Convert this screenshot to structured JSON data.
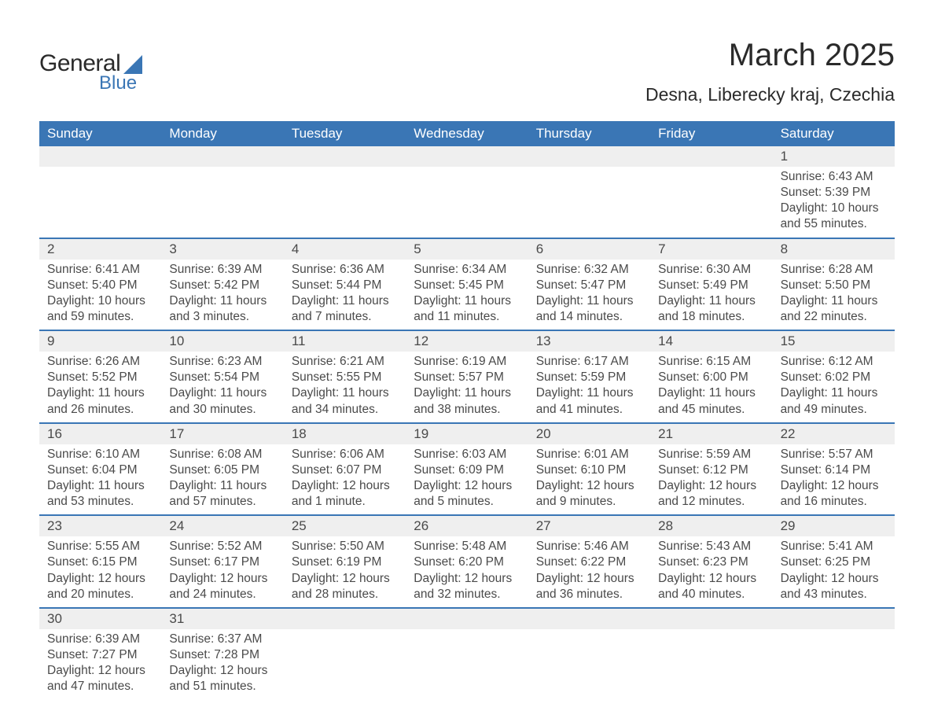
{
  "logo": {
    "general": "General",
    "blue": "Blue"
  },
  "title": "March 2025",
  "location": "Desna, Liberecky kraj, Czechia",
  "dayNames": [
    "Sunday",
    "Monday",
    "Tuesday",
    "Wednesday",
    "Thursday",
    "Friday",
    "Saturday"
  ],
  "colors": {
    "header_bg": "#3a76b5",
    "header_text": "#ffffff",
    "daynum_bg": "#efefef",
    "row_divider": "#3a76b5",
    "text": "#4a4a4a",
    "background": "#ffffff"
  },
  "typography": {
    "title_fontsize": 40,
    "location_fontsize": 23,
    "dayname_fontsize": 17,
    "daynum_fontsize": 17,
    "body_fontsize": 15.5
  },
  "layout": {
    "columns": 7,
    "rows": 6,
    "first_weekday": "Sunday"
  },
  "weeks": [
    [
      {
        "n": ""
      },
      {
        "n": ""
      },
      {
        "n": ""
      },
      {
        "n": ""
      },
      {
        "n": ""
      },
      {
        "n": ""
      },
      {
        "n": "1",
        "sr": "Sunrise: 6:43 AM",
        "ss": "Sunset: 5:39 PM",
        "d1": "Daylight: 10 hours",
        "d2": "and 55 minutes."
      }
    ],
    [
      {
        "n": "2",
        "sr": "Sunrise: 6:41 AM",
        "ss": "Sunset: 5:40 PM",
        "d1": "Daylight: 10 hours",
        "d2": "and 59 minutes."
      },
      {
        "n": "3",
        "sr": "Sunrise: 6:39 AM",
        "ss": "Sunset: 5:42 PM",
        "d1": "Daylight: 11 hours",
        "d2": "and 3 minutes."
      },
      {
        "n": "4",
        "sr": "Sunrise: 6:36 AM",
        "ss": "Sunset: 5:44 PM",
        "d1": "Daylight: 11 hours",
        "d2": "and 7 minutes."
      },
      {
        "n": "5",
        "sr": "Sunrise: 6:34 AM",
        "ss": "Sunset: 5:45 PM",
        "d1": "Daylight: 11 hours",
        "d2": "and 11 minutes."
      },
      {
        "n": "6",
        "sr": "Sunrise: 6:32 AM",
        "ss": "Sunset: 5:47 PM",
        "d1": "Daylight: 11 hours",
        "d2": "and 14 minutes."
      },
      {
        "n": "7",
        "sr": "Sunrise: 6:30 AM",
        "ss": "Sunset: 5:49 PM",
        "d1": "Daylight: 11 hours",
        "d2": "and 18 minutes."
      },
      {
        "n": "8",
        "sr": "Sunrise: 6:28 AM",
        "ss": "Sunset: 5:50 PM",
        "d1": "Daylight: 11 hours",
        "d2": "and 22 minutes."
      }
    ],
    [
      {
        "n": "9",
        "sr": "Sunrise: 6:26 AM",
        "ss": "Sunset: 5:52 PM",
        "d1": "Daylight: 11 hours",
        "d2": "and 26 minutes."
      },
      {
        "n": "10",
        "sr": "Sunrise: 6:23 AM",
        "ss": "Sunset: 5:54 PM",
        "d1": "Daylight: 11 hours",
        "d2": "and 30 minutes."
      },
      {
        "n": "11",
        "sr": "Sunrise: 6:21 AM",
        "ss": "Sunset: 5:55 PM",
        "d1": "Daylight: 11 hours",
        "d2": "and 34 minutes."
      },
      {
        "n": "12",
        "sr": "Sunrise: 6:19 AM",
        "ss": "Sunset: 5:57 PM",
        "d1": "Daylight: 11 hours",
        "d2": "and 38 minutes."
      },
      {
        "n": "13",
        "sr": "Sunrise: 6:17 AM",
        "ss": "Sunset: 5:59 PM",
        "d1": "Daylight: 11 hours",
        "d2": "and 41 minutes."
      },
      {
        "n": "14",
        "sr": "Sunrise: 6:15 AM",
        "ss": "Sunset: 6:00 PM",
        "d1": "Daylight: 11 hours",
        "d2": "and 45 minutes."
      },
      {
        "n": "15",
        "sr": "Sunrise: 6:12 AM",
        "ss": "Sunset: 6:02 PM",
        "d1": "Daylight: 11 hours",
        "d2": "and 49 minutes."
      }
    ],
    [
      {
        "n": "16",
        "sr": "Sunrise: 6:10 AM",
        "ss": "Sunset: 6:04 PM",
        "d1": "Daylight: 11 hours",
        "d2": "and 53 minutes."
      },
      {
        "n": "17",
        "sr": "Sunrise: 6:08 AM",
        "ss": "Sunset: 6:05 PM",
        "d1": "Daylight: 11 hours",
        "d2": "and 57 minutes."
      },
      {
        "n": "18",
        "sr": "Sunrise: 6:06 AM",
        "ss": "Sunset: 6:07 PM",
        "d1": "Daylight: 12 hours",
        "d2": "and 1 minute."
      },
      {
        "n": "19",
        "sr": "Sunrise: 6:03 AM",
        "ss": "Sunset: 6:09 PM",
        "d1": "Daylight: 12 hours",
        "d2": "and 5 minutes."
      },
      {
        "n": "20",
        "sr": "Sunrise: 6:01 AM",
        "ss": "Sunset: 6:10 PM",
        "d1": "Daylight: 12 hours",
        "d2": "and 9 minutes."
      },
      {
        "n": "21",
        "sr": "Sunrise: 5:59 AM",
        "ss": "Sunset: 6:12 PM",
        "d1": "Daylight: 12 hours",
        "d2": "and 12 minutes."
      },
      {
        "n": "22",
        "sr": "Sunrise: 5:57 AM",
        "ss": "Sunset: 6:14 PM",
        "d1": "Daylight: 12 hours",
        "d2": "and 16 minutes."
      }
    ],
    [
      {
        "n": "23",
        "sr": "Sunrise: 5:55 AM",
        "ss": "Sunset: 6:15 PM",
        "d1": "Daylight: 12 hours",
        "d2": "and 20 minutes."
      },
      {
        "n": "24",
        "sr": "Sunrise: 5:52 AM",
        "ss": "Sunset: 6:17 PM",
        "d1": "Daylight: 12 hours",
        "d2": "and 24 minutes."
      },
      {
        "n": "25",
        "sr": "Sunrise: 5:50 AM",
        "ss": "Sunset: 6:19 PM",
        "d1": "Daylight: 12 hours",
        "d2": "and 28 minutes."
      },
      {
        "n": "26",
        "sr": "Sunrise: 5:48 AM",
        "ss": "Sunset: 6:20 PM",
        "d1": "Daylight: 12 hours",
        "d2": "and 32 minutes."
      },
      {
        "n": "27",
        "sr": "Sunrise: 5:46 AM",
        "ss": "Sunset: 6:22 PM",
        "d1": "Daylight: 12 hours",
        "d2": "and 36 minutes."
      },
      {
        "n": "28",
        "sr": "Sunrise: 5:43 AM",
        "ss": "Sunset: 6:23 PM",
        "d1": "Daylight: 12 hours",
        "d2": "and 40 minutes."
      },
      {
        "n": "29",
        "sr": "Sunrise: 5:41 AM",
        "ss": "Sunset: 6:25 PM",
        "d1": "Daylight: 12 hours",
        "d2": "and 43 minutes."
      }
    ],
    [
      {
        "n": "30",
        "sr": "Sunrise: 6:39 AM",
        "ss": "Sunset: 7:27 PM",
        "d1": "Daylight: 12 hours",
        "d2": "and 47 minutes."
      },
      {
        "n": "31",
        "sr": "Sunrise: 6:37 AM",
        "ss": "Sunset: 7:28 PM",
        "d1": "Daylight: 12 hours",
        "d2": "and 51 minutes."
      },
      {
        "n": ""
      },
      {
        "n": ""
      },
      {
        "n": ""
      },
      {
        "n": ""
      },
      {
        "n": ""
      }
    ]
  ]
}
